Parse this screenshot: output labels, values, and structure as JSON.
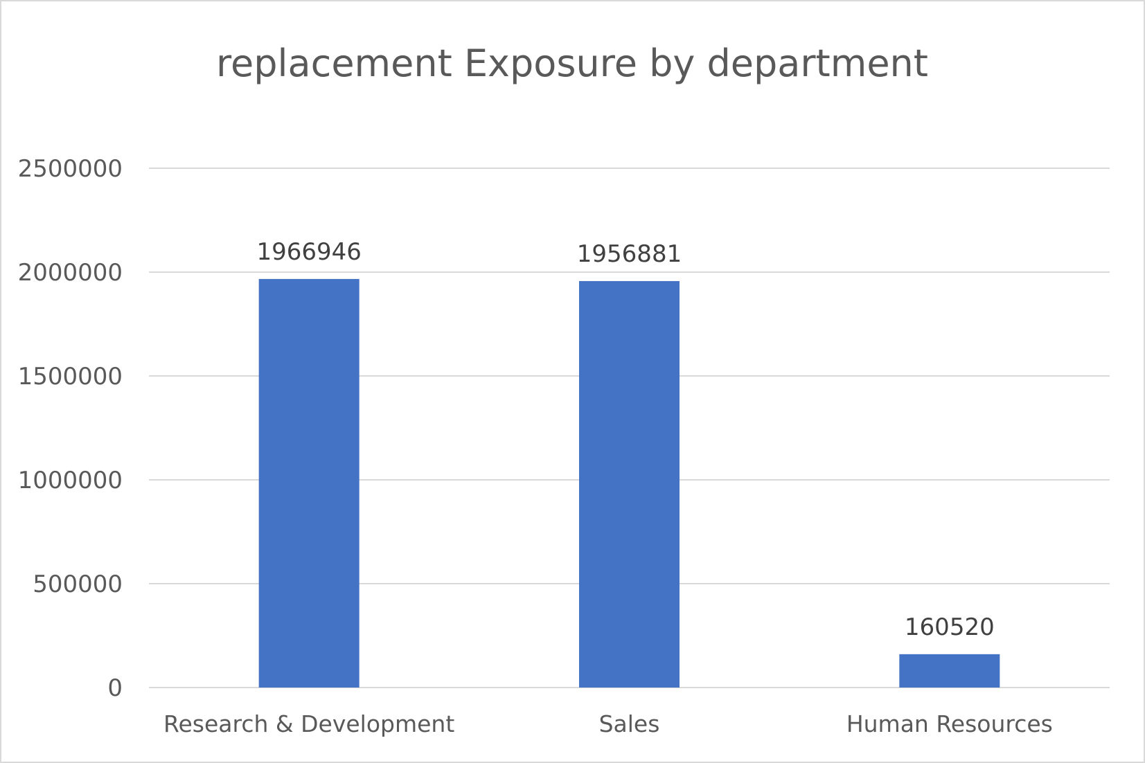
{
  "chart_data": {
    "type": "bar",
    "title": "replacement Exposure by department",
    "categories": [
      "Research & Development",
      "Sales",
      "Human Resources"
    ],
    "values": [
      1966946,
      1956881,
      160520
    ],
    "data_labels": [
      "1966946",
      "1956881",
      "160520"
    ],
    "y_ticks": [
      "0",
      "500000",
      "1000000",
      "1500000",
      "2000000",
      "2500000"
    ],
    "ylim": [
      0,
      2500000
    ],
    "grid": true,
    "legend": "none",
    "bar_color": "#4472C4",
    "gridline_color": "#d9d9d9",
    "text_color": "#595959"
  }
}
